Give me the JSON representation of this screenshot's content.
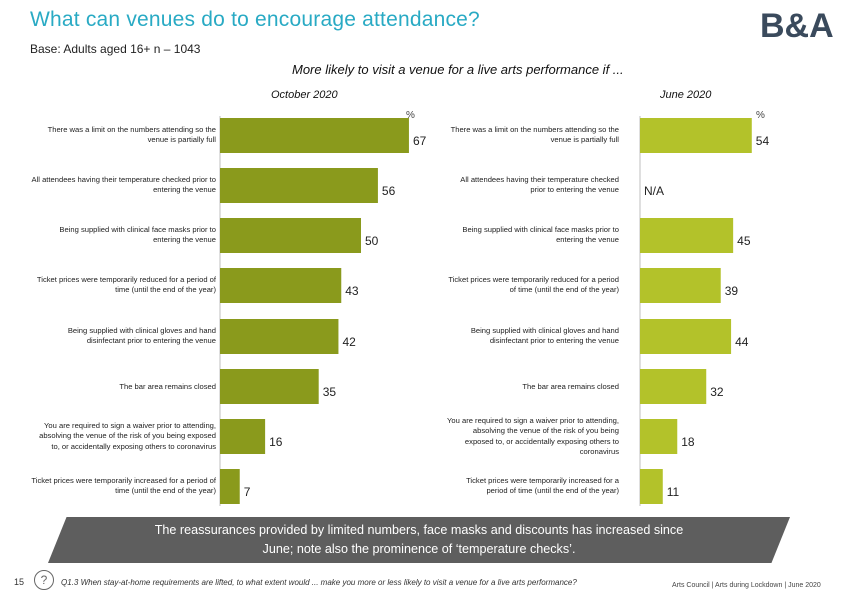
{
  "header": {
    "title": "What can venues do to encourage attendance?",
    "base": "Base: Adults aged 16+ n – 1043",
    "logo": "B&A"
  },
  "colors": {
    "title": "#29aac4",
    "bar_left": "#8a9a1c",
    "bar_right": "#b3c22a",
    "banner": "#5e5e5e",
    "logo": "#3a4a5c"
  },
  "chart_data": [
    {
      "type": "bar",
      "orientation": "horizontal",
      "title": "More likely to visit a venue for a live arts performance if ...",
      "subtitle": "October 2020",
      "unit_label": "%",
      "categories": [
        "There was a limit on the numbers attending so the venue is partially full",
        "All attendees having their temperature checked prior to entering the venue",
        "Being supplied with clinical face masks prior to entering the venue",
        "Ticket prices were temporarily reduced for a period of time (until the end of the year)",
        "Being supplied with clinical gloves and hand disinfectant prior to entering the venue",
        "The bar area remains closed",
        "You are required to sign a waiver prior to attending, absolving the venue of the risk of you being exposed to, or accidentally exposing others to coronavirus",
        "Ticket prices were temporarily increased for a period of time (until the end of the year)"
      ],
      "values": [
        67,
        56,
        50,
        43,
        42,
        35,
        16,
        7
      ],
      "value_labels": [
        "67",
        "56",
        "50",
        "43",
        "42",
        "35",
        "16",
        "7"
      ],
      "xlim": [
        0,
        100
      ]
    },
    {
      "type": "bar",
      "orientation": "horizontal",
      "subtitle": "June 2020",
      "unit_label": "%",
      "categories": [
        "There was a limit on the numbers attending so the venue is partially full",
        "All attendees having their temperature checked prior to entering the venue",
        "Being supplied with clinical face masks prior to entering the venue",
        "Ticket prices were temporarily reduced for a period of time (until the end of the year)",
        "Being supplied with clinical gloves and hand disinfectant prior to entering the venue",
        "The bar area remains closed",
        "You are required to sign a waiver prior to attending, absolving the venue of the risk of you being exposed to, or accidentally exposing others to coronavirus",
        "Ticket prices were temporarily increased for a period of time (until the end of the year)"
      ],
      "values": [
        54,
        null,
        45,
        39,
        44,
        32,
        18,
        11
      ],
      "value_labels": [
        "54",
        "N/A",
        "45",
        "39",
        "44",
        "32",
        "18",
        "11"
      ],
      "xlim": [
        0,
        100
      ]
    }
  ],
  "banner": {
    "line1": "The reassurances provided by limited numbers, face masks and discounts has increased since",
    "line2": "June; note also the prominence of ‘temperature checks’."
  },
  "footer": {
    "page_number": "15",
    "question_icon": "?",
    "question": "Q1.3 When stay-at-home requirements are lifted, to what extent would ... make you more or less likely to visit a venue for a live arts performance?",
    "source": "Arts Council | Arts during Lockdown | June 2020"
  }
}
